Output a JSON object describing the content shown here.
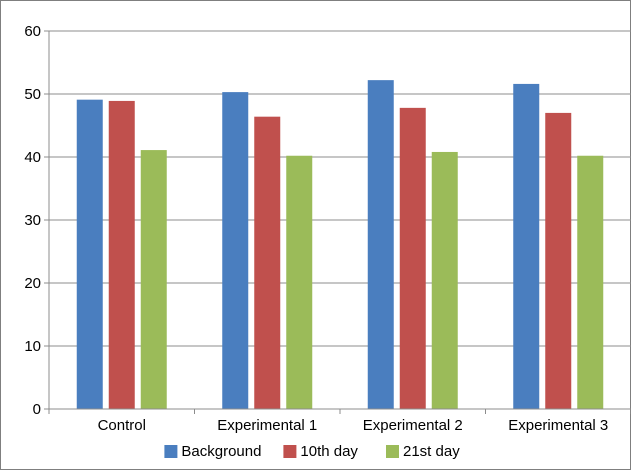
{
  "chart_data": {
    "type": "bar",
    "title": "",
    "xlabel": "",
    "ylabel": "",
    "categories": [
      "Control",
      "Experimental 1",
      "Experimental 2",
      "Experimental 3"
    ],
    "series": [
      {
        "name": "Background",
        "color": "#4a7ebf",
        "values": [
          49.1,
          50.3,
          52.2,
          51.6
        ]
      },
      {
        "name": "10th day",
        "color": "#c0504d",
        "values": [
          48.9,
          46.4,
          47.8,
          47.0
        ]
      },
      {
        "name": "21st day",
        "color": "#9bbb59",
        "values": [
          41.1,
          40.2,
          40.8,
          40.2
        ]
      }
    ],
    "ylim": [
      0,
      60
    ],
    "yticks": [
      0,
      10,
      20,
      30,
      40,
      50,
      60
    ],
    "grid": true,
    "legend_position": "bottom"
  }
}
